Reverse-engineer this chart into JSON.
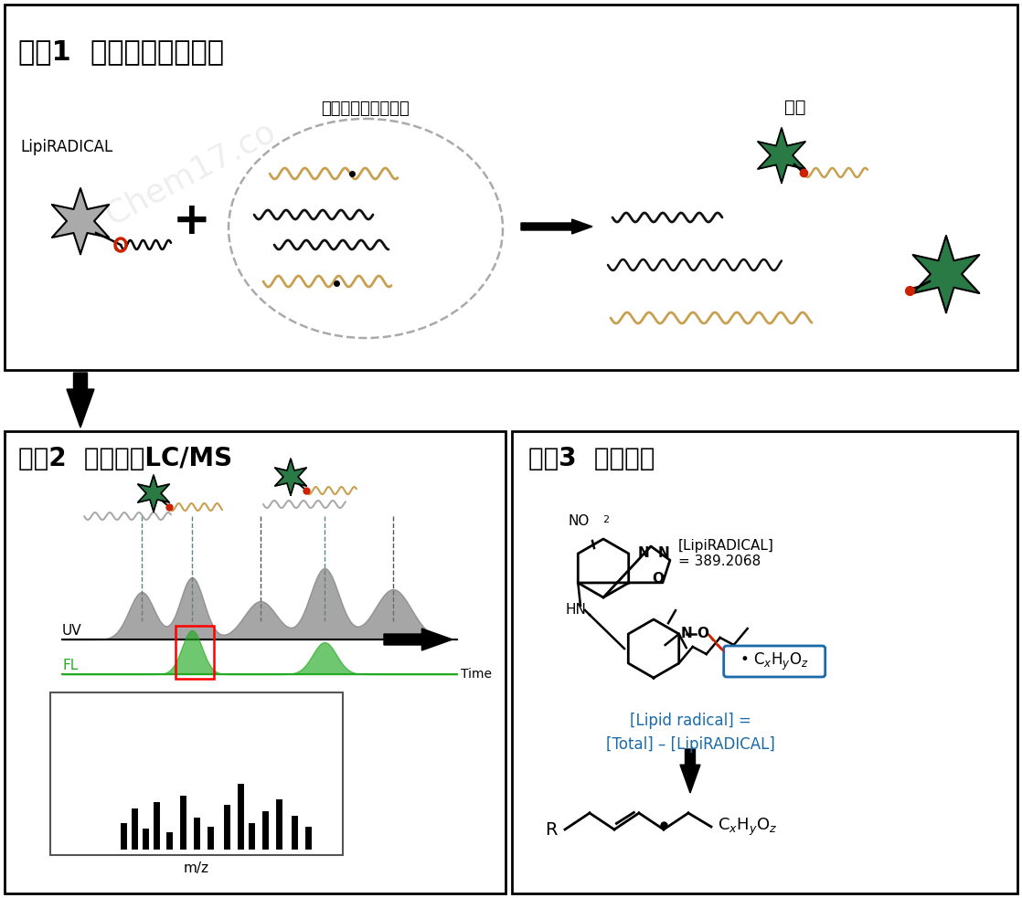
{
  "title_step1": "步骤1  脂质自由基的标记",
  "title_step2": "步骤2  荧光检测LC/MS",
  "title_step3": "步骤3  推断结构",
  "label_lipiradical": "LipiRADICAL",
  "label_sample": "含脂质自由基的样品",
  "label_mark": "标记",
  "label_uv": "UV",
  "label_fl": "FL",
  "label_time": "Time",
  "label_mz": "m/z",
  "label_lipi_mass": "[LipiRADICAL]\n= 389.2068",
  "label_lipid_eq": "[Lipid radical] =\n[Total] – [LipiRADICAL]",
  "bg_color": "#ffffff",
  "border_color": "#000000",
  "gray_star_color": "#999999",
  "green_star_color": "#2a7a45",
  "red_dot_color": "#cc2200",
  "wavy_black": "#111111",
  "wavy_tan": "#c8a050",
  "wavy_gray": "#aaaaaa",
  "red_dashed_color": "#cc2200",
  "blue_text_color": "#1a6aaa",
  "blue_box_color": "#1a6aaa",
  "fl_color": "#22aa22",
  "title_fontsize": 20,
  "body_fontsize": 11
}
